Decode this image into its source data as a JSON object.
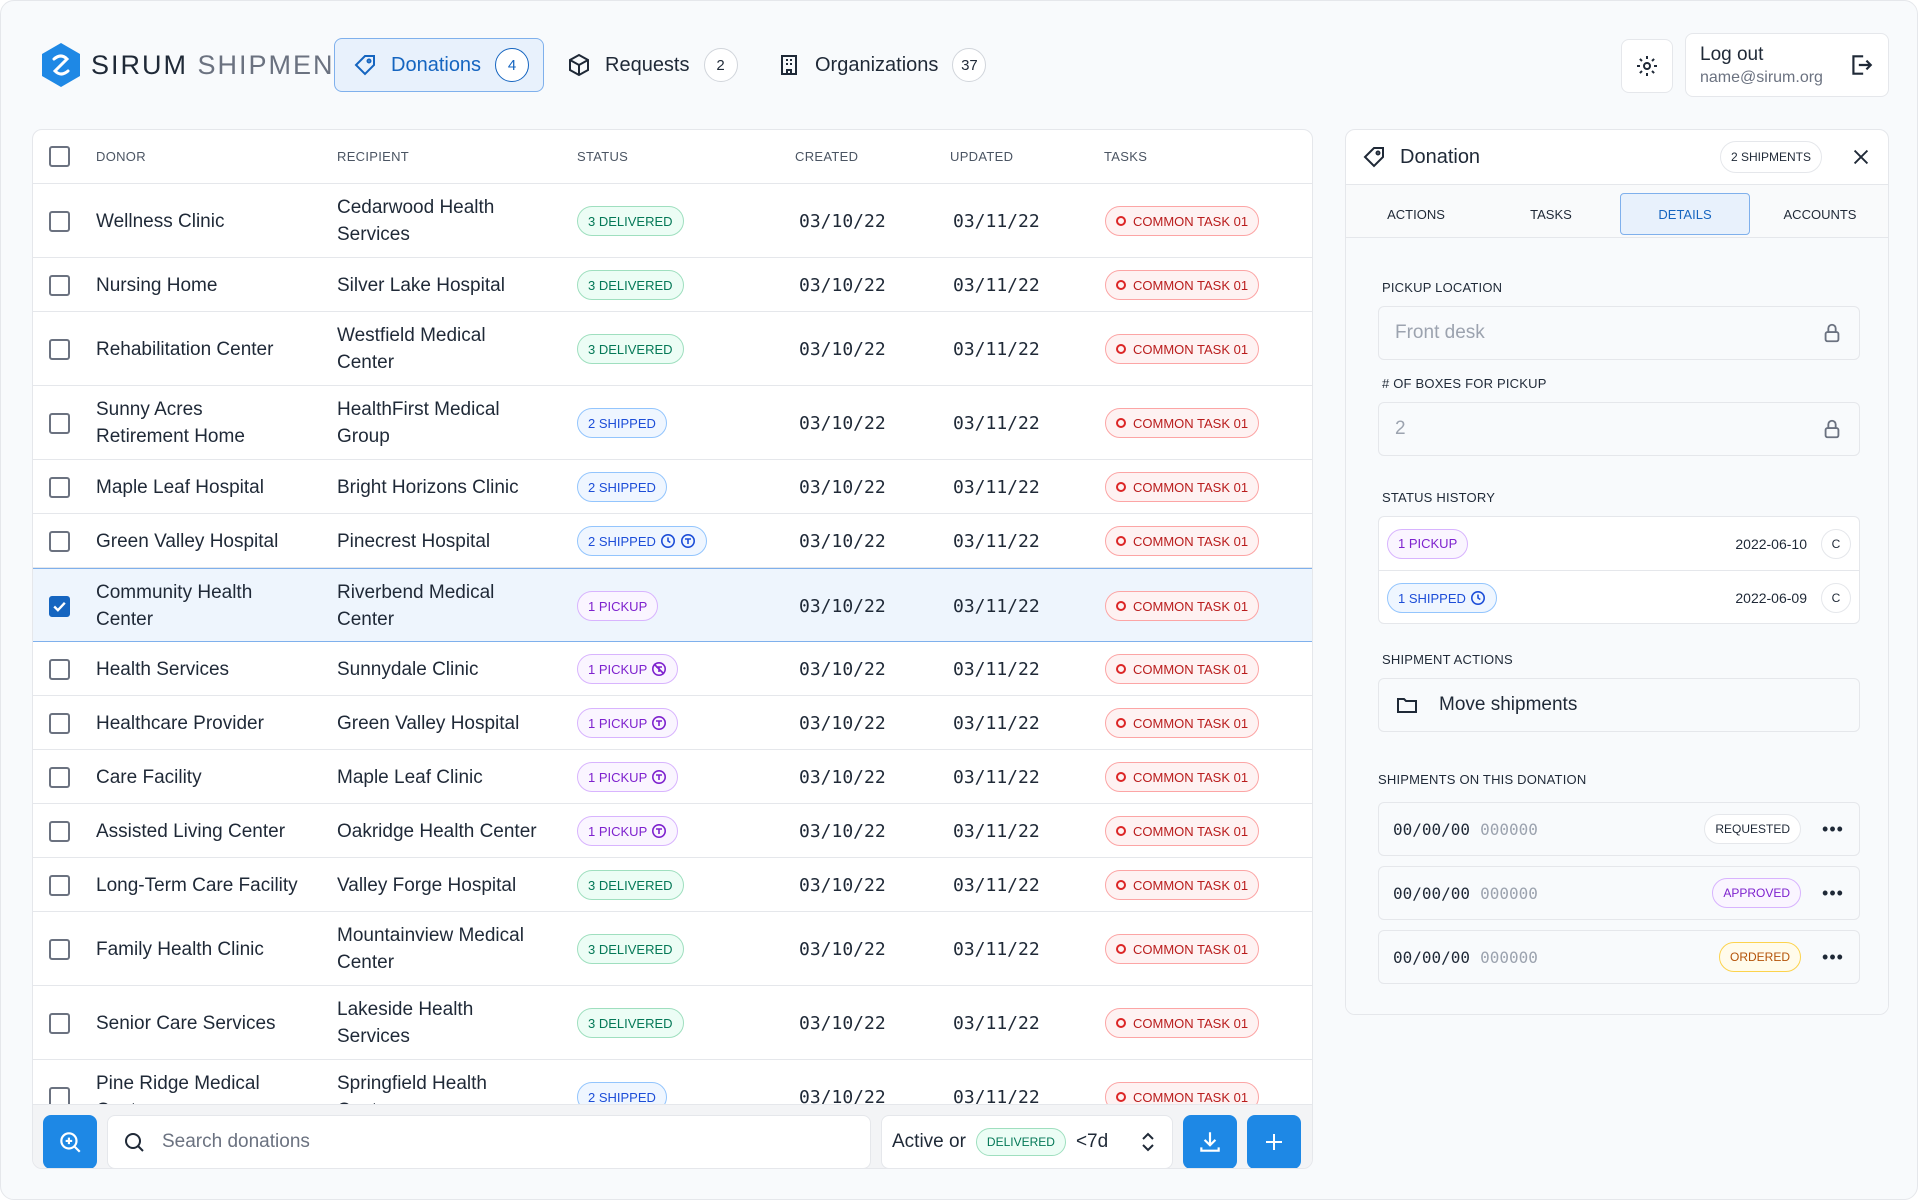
{
  "app": {
    "brand_bold": "SIRUM",
    "brand_light": "SHIPMENTS"
  },
  "nav": [
    {
      "label": "Donations",
      "count": "4",
      "icon": "tag-icon",
      "active": true
    },
    {
      "label": "Requests",
      "count": "2",
      "icon": "box-icon",
      "active": false
    },
    {
      "label": "Organizations",
      "count": "37",
      "icon": "building-icon",
      "active": false
    }
  ],
  "account": {
    "logout_label": "Log out",
    "email": "name@sirum.org"
  },
  "table": {
    "headers": {
      "donor": "DONOR",
      "recipient": "RECIPIENT",
      "status": "STATUS",
      "created": "CREATED",
      "updated": "UPDATED",
      "tasks": "TASKS"
    },
    "rows": [
      {
        "donor": [
          "Wellness Clinic"
        ],
        "recipient": [
          "Cedarwood Health",
          "Services"
        ],
        "status": "3 DELIVERED",
        "kind": "delivered",
        "icons": [],
        "created": "03/10/22",
        "updated": "03/11/22",
        "task": "COMMON TASK 01",
        "checked": false,
        "h": 74
      },
      {
        "donor": [
          "Nursing Home"
        ],
        "recipient": [
          "Silver Lake Hospital"
        ],
        "status": "3 DELIVERED",
        "kind": "delivered",
        "icons": [],
        "created": "03/10/22",
        "updated": "03/11/22",
        "task": "COMMON TASK 01",
        "checked": false,
        "h": 54
      },
      {
        "donor": [
          "Rehabilitation Center"
        ],
        "recipient": [
          "Westfield Medical",
          "Center"
        ],
        "status": "3 DELIVERED",
        "kind": "delivered",
        "icons": [],
        "created": "03/10/22",
        "updated": "03/11/22",
        "task": "COMMON TASK 01",
        "checked": false,
        "h": 74
      },
      {
        "donor": [
          "Sunny Acres",
          "Retirement Home"
        ],
        "recipient": [
          "HealthFirst Medical",
          "Group"
        ],
        "status": "2 SHIPPED",
        "kind": "shipped",
        "icons": [],
        "created": "03/10/22",
        "updated": "03/11/22",
        "task": "COMMON TASK 01",
        "checked": false,
        "h": 74
      },
      {
        "donor": [
          "Maple Leaf Hospital"
        ],
        "recipient": [
          "Bright Horizons Clinic"
        ],
        "status": "2 SHIPPED",
        "kind": "shipped",
        "icons": [],
        "created": "03/10/22",
        "updated": "03/11/22",
        "task": "COMMON TASK 01",
        "checked": false,
        "h": 54
      },
      {
        "donor": [
          "Green Valley Hospital"
        ],
        "recipient": [
          "Pinecrest Hospital"
        ],
        "status": "2 SHIPPED",
        "kind": "shipped",
        "icons": [
          "clock-icon",
          "truck-icon"
        ],
        "created": "03/10/22",
        "updated": "03/11/22",
        "task": "COMMON TASK 01",
        "checked": false,
        "h": 54
      },
      {
        "donor": [
          "Community Health",
          "Center"
        ],
        "recipient": [
          "Riverbend Medical",
          "Center"
        ],
        "status": "1 PICKUP",
        "kind": "pickup",
        "icons": [],
        "created": "03/10/22",
        "updated": "03/11/22",
        "task": "COMMON TASK 01",
        "checked": true,
        "h": 74
      },
      {
        "donor": [
          "Health Services"
        ],
        "recipient": [
          "Sunnydale Clinic"
        ],
        "status": "1 PICKUP",
        "kind": "pickup",
        "icons": [
          "no-truck-icon"
        ],
        "created": "03/10/22",
        "updated": "03/11/22",
        "task": "COMMON TASK 01",
        "checked": false,
        "h": 54
      },
      {
        "donor": [
          "Healthcare Provider"
        ],
        "recipient": [
          "Green Valley Hospital"
        ],
        "status": "1 PICKUP",
        "kind": "pickup",
        "icons": [
          "truck-icon"
        ],
        "created": "03/10/22",
        "updated": "03/11/22",
        "task": "COMMON TASK 01",
        "checked": false,
        "h": 54
      },
      {
        "donor": [
          "Care Facility"
        ],
        "recipient": [
          "Maple Leaf Clinic"
        ],
        "status": "1 PICKUP",
        "kind": "pickup",
        "icons": [
          "truck-icon"
        ],
        "created": "03/10/22",
        "updated": "03/11/22",
        "task": "COMMON TASK 01",
        "checked": false,
        "h": 54
      },
      {
        "donor": [
          "Assisted Living Center"
        ],
        "recipient": [
          "Oakridge Health Center"
        ],
        "status": "1 PICKUP",
        "kind": "pickup",
        "icons": [
          "truck-icon"
        ],
        "created": "03/10/22",
        "updated": "03/11/22",
        "task": "COMMON TASK 01",
        "checked": false,
        "h": 54
      },
      {
        "donor": [
          "Long-Term Care Facility"
        ],
        "recipient": [
          "Valley Forge Hospital"
        ],
        "status": "3 DELIVERED",
        "kind": "delivered",
        "icons": [],
        "created": "03/10/22",
        "updated": "03/11/22",
        "task": "COMMON TASK 01",
        "checked": false,
        "h": 54
      },
      {
        "donor": [
          "Family Health Clinic"
        ],
        "recipient": [
          "Mountainview Medical",
          "Center"
        ],
        "status": "3 DELIVERED",
        "kind": "delivered",
        "icons": [],
        "created": "03/10/22",
        "updated": "03/11/22",
        "task": "COMMON TASK 01",
        "checked": false,
        "h": 74
      },
      {
        "donor": [
          "Senior Care Services"
        ],
        "recipient": [
          "Lakeside Health",
          "Services"
        ],
        "status": "3 DELIVERED",
        "kind": "delivered",
        "icons": [],
        "created": "03/10/22",
        "updated": "03/11/22",
        "task": "COMMON TASK 01",
        "checked": false,
        "h": 74
      },
      {
        "donor": [
          "Pine Ridge Medical",
          "Center"
        ],
        "recipient": [
          "Springfield Health",
          "Center"
        ],
        "status": "2 SHIPPED",
        "kind": "shipped",
        "icons": [],
        "created": "03/10/22",
        "updated": "03/11/22",
        "task": "COMMON TASK 01",
        "checked": false,
        "h": 74
      }
    ]
  },
  "footer": {
    "search_placeholder": "Search donations",
    "filter_prefix": "Active or",
    "filter_badge": "DELIVERED",
    "filter_suffix": "<7d"
  },
  "panel": {
    "title": "Donation",
    "shipments_pill": "2 SHIPMENTS",
    "tabs": [
      "ACTIONS",
      "TASKS",
      "DETAILS",
      "ACCOUNTS"
    ],
    "active_tab": "DETAILS",
    "pickup_label": "PICKUP LOCATION",
    "pickup_value": "Front desk",
    "boxes_label": "# OF BOXES FOR PICKUP",
    "boxes_value": "2",
    "history_label": "STATUS HISTORY",
    "history": [
      {
        "status": "1 PICKUP",
        "kind": "pickup",
        "date": "2022-06-10",
        "btn": "C",
        "icon": ""
      },
      {
        "status": "1 SHIPPED",
        "kind": "shipped",
        "date": "2022-06-09",
        "btn": "C",
        "icon": "clock-icon"
      }
    ],
    "actions_label": "SHIPMENT ACTIONS",
    "move_label": "Move shipments",
    "shipments_label": "SHIPMENTS ON THIS DONATION",
    "shipments": [
      {
        "code": "00/00/00",
        "num": "000000",
        "status": "REQUESTED",
        "kind": "requested"
      },
      {
        "code": "00/00/00",
        "num": "000000",
        "status": "APPROVED",
        "kind": "approved"
      },
      {
        "code": "00/00/00",
        "num": "000000",
        "status": "ORDERED",
        "kind": "ordered"
      }
    ]
  },
  "colors": {
    "accent": "#1e88e5",
    "accent_dark": "#1565c0"
  }
}
